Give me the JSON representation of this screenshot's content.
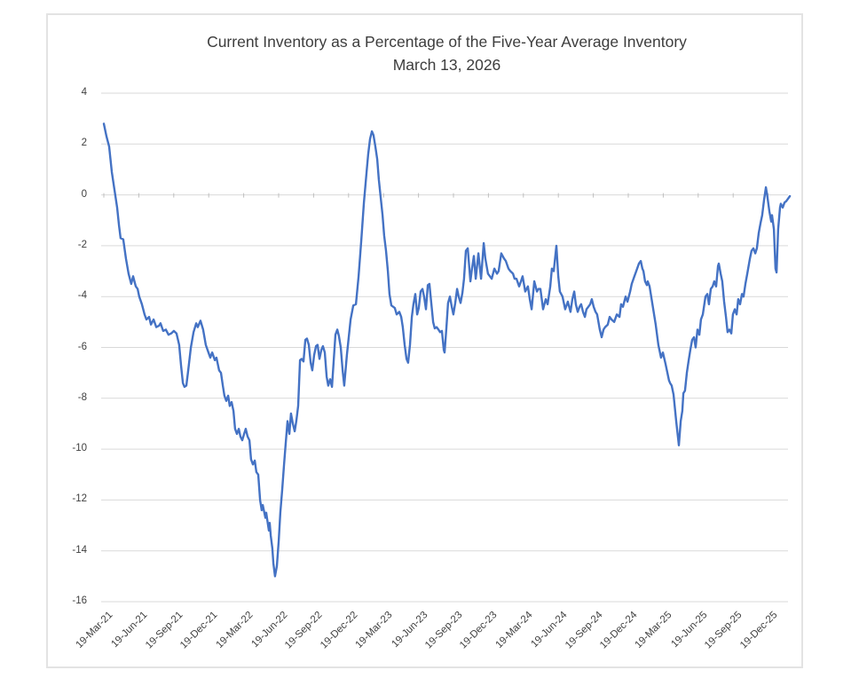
{
  "chart_data": {
    "type": "line",
    "title": "Current Inventory as a Percentage of the Five-Year Average Inventory",
    "subtitle": "March 13, 2026",
    "xlabel": "",
    "ylabel": "",
    "ylim": [
      -16,
      4
    ],
    "y_ticks": [
      4,
      2,
      0,
      -2,
      -4,
      -6,
      -8,
      -10,
      -12,
      -14,
      -16
    ],
    "x_tick_labels": [
      "19-Mar-21",
      "19-Jun-21",
      "19-Sep-21",
      "19-Dec-21",
      "19-Mar-22",
      "19-Jun-22",
      "19-Sep-22",
      "19-Dec-22",
      "19-Mar-23",
      "19-Jun-23",
      "19-Sep-23",
      "19-Dec-23",
      "19-Mar-24",
      "19-Jun-24",
      "19-Sep-24",
      "19-Dec-24",
      "19-Mar-25",
      "19-Jun-25",
      "19-Sep-25",
      "19-Dec-25"
    ],
    "x_unit": "weeks since 19-Mar-21",
    "grid": true,
    "legend": "none",
    "line_color": "#4472C4",
    "grid_color": "#d9d9d9",
    "tick_color": "#bfbfbf",
    "points": [
      [
        0,
        2.8
      ],
      [
        1,
        2.3
      ],
      [
        2,
        1.9
      ],
      [
        3,
        0.9
      ],
      [
        4,
        0.2
      ],
      [
        5,
        -0.5
      ],
      [
        5.7,
        -1.2
      ],
      [
        6.3,
        -1.7
      ],
      [
        7.3,
        -1.75
      ],
      [
        8.3,
        -2.5
      ],
      [
        9.3,
        -3.1
      ],
      [
        10.3,
        -3.5
      ],
      [
        11,
        -3.2
      ],
      [
        12,
        -3.6
      ],
      [
        12.7,
        -3.7
      ],
      [
        13.3,
        -4
      ],
      [
        14.3,
        -4.3
      ],
      [
        15.3,
        -4.7
      ],
      [
        16,
        -4.9
      ],
      [
        17,
        -4.8
      ],
      [
        17.7,
        -5.1
      ],
      [
        18.7,
        -4.9
      ],
      [
        19.7,
        -5.2
      ],
      [
        20.7,
        -5.15
      ],
      [
        21.3,
        -5.05
      ],
      [
        22.3,
        -5.35
      ],
      [
        23.3,
        -5.3
      ],
      [
        24.3,
        -5.5
      ],
      [
        25.3,
        -5.45
      ],
      [
        26.3,
        -5.35
      ],
      [
        27.3,
        -5.45
      ],
      [
        28.3,
        -5.9
      ],
      [
        29,
        -6.7
      ],
      [
        29.7,
        -7.4
      ],
      [
        30.3,
        -7.55
      ],
      [
        31,
        -7.5
      ],
      [
        31.7,
        -6.9
      ],
      [
        32.7,
        -6
      ],
      [
        33.7,
        -5.4
      ],
      [
        34.7,
        -5.05
      ],
      [
        35.3,
        -5.2
      ],
      [
        36.3,
        -4.95
      ],
      [
        37.3,
        -5.3
      ],
      [
        38.3,
        -5.9
      ],
      [
        39.3,
        -6.2
      ],
      [
        40,
        -6.4
      ],
      [
        40.7,
        -6.2
      ],
      [
        41.7,
        -6.5
      ],
      [
        42.3,
        -6.4
      ],
      [
        43.3,
        -6.9
      ],
      [
        44,
        -7
      ],
      [
        44.7,
        -7.5
      ],
      [
        45.3,
        -7.9
      ],
      [
        46,
        -8.1
      ],
      [
        46.7,
        -7.9
      ],
      [
        47.3,
        -8.3
      ],
      [
        48,
        -8.15
      ],
      [
        48.7,
        -8.5
      ],
      [
        49.3,
        -9.2
      ],
      [
        50,
        -9.4
      ],
      [
        50.7,
        -9.2
      ],
      [
        51.3,
        -9.5
      ],
      [
        52,
        -9.65
      ],
      [
        52.7,
        -9.4
      ],
      [
        53.3,
        -9.2
      ],
      [
        54,
        -9.5
      ],
      [
        54.7,
        -9.65
      ],
      [
        55.3,
        -10.4
      ],
      [
        56,
        -10.6
      ],
      [
        56.7,
        -10.45
      ],
      [
        57.3,
        -10.9
      ],
      [
        58,
        -11
      ],
      [
        58.7,
        -12
      ],
      [
        59.3,
        -12.4
      ],
      [
        59.7,
        -12.2
      ],
      [
        60.3,
        -12.5
      ],
      [
        60.7,
        -12.7
      ],
      [
        61,
        -12.5
      ],
      [
        61.7,
        -13
      ],
      [
        62,
        -13.2
      ],
      [
        62.3,
        -12.9
      ],
      [
        62.7,
        -13.4
      ],
      [
        63.3,
        -13.9
      ],
      [
        63.7,
        -14.5
      ],
      [
        64.3,
        -15
      ],
      [
        65,
        -14.6
      ],
      [
        65.7,
        -13.6
      ],
      [
        66.3,
        -12.5
      ],
      [
        67,
        -11.6
      ],
      [
        67.7,
        -10.6
      ],
      [
        68.3,
        -9.8
      ],
      [
        69,
        -8.9
      ],
      [
        69.7,
        -9.4
      ],
      [
        70.3,
        -8.6
      ],
      [
        71,
        -9
      ],
      [
        71.7,
        -9.3
      ],
      [
        72.3,
        -8.9
      ],
      [
        73,
        -8.3
      ],
      [
        73.7,
        -6.5
      ],
      [
        74.3,
        -6.45
      ],
      [
        75,
        -6.55
      ],
      [
        75.7,
        -5.7
      ],
      [
        76.3,
        -5.65
      ],
      [
        77,
        -5.9
      ],
      [
        77.7,
        -6.6
      ],
      [
        78.3,
        -6.9
      ],
      [
        79,
        -6.3
      ],
      [
        79.7,
        -5.95
      ],
      [
        80.3,
        -5.9
      ],
      [
        81,
        -6.45
      ],
      [
        81.7,
        -6.1
      ],
      [
        82.3,
        -5.95
      ],
      [
        83,
        -6.2
      ],
      [
        83.7,
        -7.15
      ],
      [
        84.3,
        -7.5
      ],
      [
        85,
        -7.25
      ],
      [
        85.7,
        -7.55
      ],
      [
        86.3,
        -6.6
      ],
      [
        87,
        -5.5
      ],
      [
        87.7,
        -5.3
      ],
      [
        88.3,
        -5.55
      ],
      [
        89,
        -6
      ],
      [
        89.7,
        -6.9
      ],
      [
        90.3,
        -7.5
      ],
      [
        91.3,
        -6.3
      ],
      [
        92,
        -5.6
      ],
      [
        92.7,
        -4.9
      ],
      [
        93.7,
        -4.35
      ],
      [
        94.7,
        -4.3
      ],
      [
        95.7,
        -3.2
      ],
      [
        96.7,
        -1.8
      ],
      [
        97.7,
        -0.3
      ],
      [
        98.7,
        0.9
      ],
      [
        99.3,
        1.6
      ],
      [
        100,
        2.2
      ],
      [
        100.7,
        2.5
      ],
      [
        101.3,
        2.35
      ],
      [
        102,
        1.9
      ],
      [
        102.7,
        1.4
      ],
      [
        103.3,
        0.6
      ],
      [
        104,
        -0.1
      ],
      [
        104.7,
        -0.8
      ],
      [
        105.3,
        -1.6
      ],
      [
        106,
        -2.2
      ],
      [
        106.7,
        -3
      ],
      [
        107.3,
        -3.9
      ],
      [
        108,
        -4.35
      ],
      [
        108.7,
        -4.4
      ],
      [
        109.3,
        -4.45
      ],
      [
        110,
        -4.7
      ],
      [
        111,
        -4.6
      ],
      [
        111.7,
        -4.8
      ],
      [
        112.3,
        -5.2
      ],
      [
        113,
        -5.9
      ],
      [
        113.7,
        -6.45
      ],
      [
        114.3,
        -6.6
      ],
      [
        115,
        -5.9
      ],
      [
        115.7,
        -4.8
      ],
      [
        116.3,
        -4.3
      ],
      [
        117,
        -3.9
      ],
      [
        117.7,
        -4.7
      ],
      [
        118.3,
        -4.45
      ],
      [
        119,
        -3.8
      ],
      [
        119.7,
        -3.7
      ],
      [
        120.3,
        -4
      ],
      [
        121,
        -4.5
      ],
      [
        121.7,
        -3.55
      ],
      [
        122.3,
        -3.5
      ],
      [
        123,
        -4.25
      ],
      [
        123.7,
        -5
      ],
      [
        124.3,
        -5.25
      ],
      [
        125,
        -5.2
      ],
      [
        125.7,
        -5.3
      ],
      [
        126.3,
        -5.4
      ],
      [
        127,
        -5.35
      ],
      [
        127.7,
        -6.1
      ],
      [
        128,
        -6.2
      ],
      [
        128.7,
        -5.2
      ],
      [
        129.3,
        -4.25
      ],
      [
        130,
        -4
      ],
      [
        130.7,
        -4.4
      ],
      [
        131.3,
        -4.7
      ],
      [
        132,
        -4.25
      ],
      [
        132.7,
        -3.7
      ],
      [
        133.3,
        -4
      ],
      [
        134,
        -4.25
      ],
      [
        134.7,
        -3.85
      ],
      [
        135.3,
        -3.3
      ],
      [
        136,
        -2.2
      ],
      [
        136.7,
        -2.1
      ],
      [
        137.7,
        -3.4
      ],
      [
        138.3,
        -2.9
      ],
      [
        139,
        -2.4
      ],
      [
        139.7,
        -3.3
      ],
      [
        140.7,
        -2.3
      ],
      [
        141.7,
        -3.3
      ],
      [
        142.7,
        -1.9
      ],
      [
        143.3,
        -2.5
      ],
      [
        144.3,
        -3.1
      ],
      [
        145.7,
        -3.3
      ],
      [
        146.7,
        -2.9
      ],
      [
        147.7,
        -3.1
      ],
      [
        148.3,
        -3
      ],
      [
        149.3,
        -2.3
      ],
      [
        150.3,
        -2.5
      ],
      [
        151,
        -2.6
      ],
      [
        152,
        -2.9
      ],
      [
        152.7,
        -3
      ],
      [
        153.7,
        -3.1
      ],
      [
        154.3,
        -3.3
      ],
      [
        155,
        -3.3
      ],
      [
        156,
        -3.6
      ],
      [
        156.7,
        -3.4
      ],
      [
        157.3,
        -3.2
      ],
      [
        158.3,
        -3.8
      ],
      [
        159.3,
        -3.6
      ],
      [
        160,
        -4.1
      ],
      [
        160.7,
        -4.5
      ],
      [
        161.7,
        -3.4
      ],
      [
        162.7,
        -3.8
      ],
      [
        163.3,
        -3.7
      ],
      [
        164,
        -3.7
      ],
      [
        165,
        -4.5
      ],
      [
        166,
        -4.1
      ],
      [
        166.7,
        -4.3
      ],
      [
        167.7,
        -3.6
      ],
      [
        168.3,
        -2.9
      ],
      [
        169,
        -3
      ],
      [
        170,
        -2
      ],
      [
        170.7,
        -3.2
      ],
      [
        171.3,
        -3.8
      ],
      [
        172.3,
        -4
      ],
      [
        173.3,
        -4.5
      ],
      [
        174.3,
        -4.2
      ],
      [
        175.3,
        -4.6
      ],
      [
        176,
        -4.1
      ],
      [
        176.7,
        -3.8
      ],
      [
        177.3,
        -4.3
      ],
      [
        178,
        -4.6
      ],
      [
        178.7,
        -4.4
      ],
      [
        179.3,
        -4.3
      ],
      [
        180,
        -4.6
      ],
      [
        180.7,
        -4.8
      ],
      [
        181.3,
        -4.5
      ],
      [
        182,
        -4.4
      ],
      [
        182.7,
        -4.3
      ],
      [
        183.3,
        -4.1
      ],
      [
        184,
        -4.4
      ],
      [
        184.7,
        -4.6
      ],
      [
        185.3,
        -4.7
      ],
      [
        186.3,
        -5.3
      ],
      [
        187,
        -5.6
      ],
      [
        187.7,
        -5.3
      ],
      [
        188.3,
        -5.2
      ],
      [
        189.3,
        -5.1
      ],
      [
        190,
        -4.8
      ],
      [
        190.7,
        -4.9
      ],
      [
        191.7,
        -5
      ],
      [
        192.7,
        -4.7
      ],
      [
        193.7,
        -4.8
      ],
      [
        194.3,
        -4.3
      ],
      [
        195,
        -4.4
      ],
      [
        196,
        -4
      ],
      [
        196.7,
        -4.2
      ],
      [
        197.7,
        -3.8
      ],
      [
        198.3,
        -3.5
      ],
      [
        199.3,
        -3.2
      ],
      [
        200,
        -3
      ],
      [
        201,
        -2.7
      ],
      [
        201.7,
        -2.6
      ],
      [
        202.3,
        -2.9
      ],
      [
        202.7,
        -3
      ],
      [
        203.3,
        -3.4
      ],
      [
        204,
        -3.55
      ],
      [
        204.3,
        -3.4
      ],
      [
        205,
        -3.6
      ],
      [
        206,
        -4.25
      ],
      [
        207.3,
        -5.1
      ],
      [
        208.3,
        -5.9
      ],
      [
        209.3,
        -6.4
      ],
      [
        210,
        -6.2
      ],
      [
        211,
        -6.65
      ],
      [
        212.3,
        -7.3
      ],
      [
        212.7,
        -7.4
      ],
      [
        213.3,
        -7.5
      ],
      [
        214,
        -7.85
      ],
      [
        215,
        -8.9
      ],
      [
        216,
        -9.85
      ],
      [
        216.7,
        -8.9
      ],
      [
        217.3,
        -8.5
      ],
      [
        217.7,
        -7.8
      ],
      [
        218.3,
        -7.7
      ],
      [
        219,
        -7
      ],
      [
        219.7,
        -6.5
      ],
      [
        220.3,
        -6.1
      ],
      [
        221,
        -5.7
      ],
      [
        221.7,
        -5.6
      ],
      [
        222.3,
        -6
      ],
      [
        223,
        -5.3
      ],
      [
        223.7,
        -5.5
      ],
      [
        224.3,
        -4.9
      ],
      [
        225,
        -4.7
      ],
      [
        226,
        -4
      ],
      [
        226.7,
        -3.9
      ],
      [
        227.3,
        -4.3
      ],
      [
        228,
        -3.7
      ],
      [
        228.7,
        -3.6
      ],
      [
        229.3,
        -3.4
      ],
      [
        230,
        -3.6
      ],
      [
        230.7,
        -2.8
      ],
      [
        231,
        -2.7
      ],
      [
        231.7,
        -3.1
      ],
      [
        232.3,
        -3.4
      ],
      [
        233,
        -4.2
      ],
      [
        233.7,
        -4.8
      ],
      [
        234.3,
        -5.4
      ],
      [
        235,
        -5.3
      ],
      [
        235.7,
        -5.45
      ],
      [
        236.3,
        -4.7
      ],
      [
        237,
        -4.5
      ],
      [
        237.7,
        -4.7
      ],
      [
        238.3,
        -4.1
      ],
      [
        239,
        -4.3
      ],
      [
        239.7,
        -3.9
      ],
      [
        240.3,
        -4
      ],
      [
        241,
        -3.5
      ],
      [
        241.7,
        -3.1
      ],
      [
        242.7,
        -2.5
      ],
      [
        243.3,
        -2.2
      ],
      [
        244,
        -2.1
      ],
      [
        244.7,
        -2.3
      ],
      [
        245.3,
        -2.1
      ],
      [
        246,
        -1.5
      ],
      [
        246.7,
        -1.1
      ],
      [
        247.3,
        -0.8
      ],
      [
        248,
        -0.2
      ],
      [
        248.7,
        0.3
      ],
      [
        249.3,
        -0.1
      ],
      [
        250,
        -0.65
      ],
      [
        250.7,
        -1.05
      ],
      [
        251,
        -0.8
      ],
      [
        251.7,
        -1.35
      ],
      [
        252.3,
        -2.9
      ],
      [
        252.7,
        -3.05
      ],
      [
        253.3,
        -1.35
      ],
      [
        254,
        -0.5
      ],
      [
        254.3,
        -0.35
      ],
      [
        255,
        -0.5
      ],
      [
        255.7,
        -0.3
      ],
      [
        256.3,
        -0.25
      ],
      [
        257,
        -0.15
      ],
      [
        257.7,
        -0.05
      ]
    ]
  }
}
